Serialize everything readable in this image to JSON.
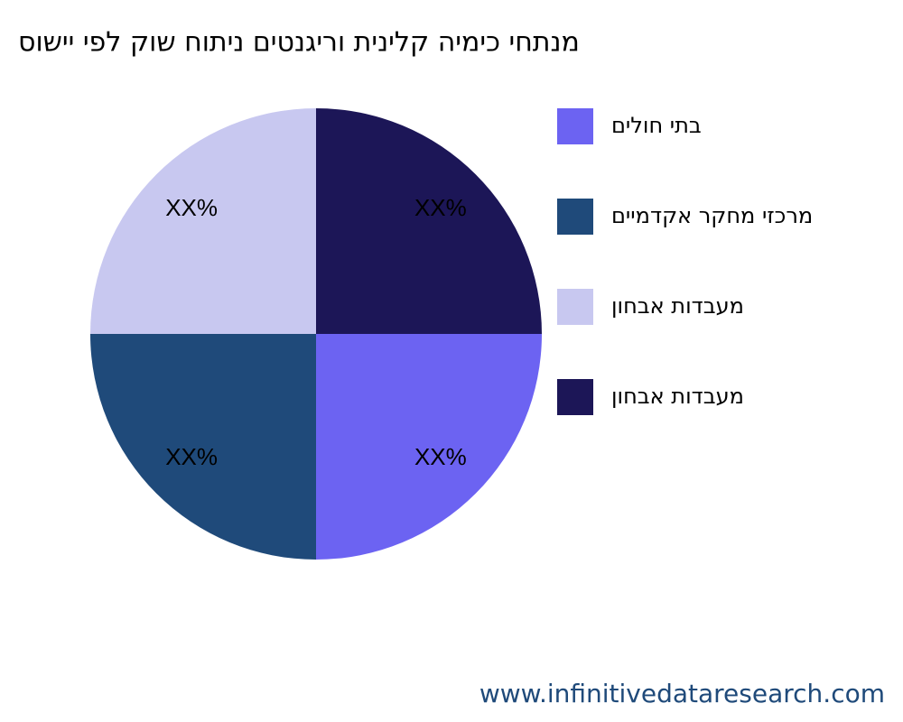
{
  "chart_data": {
    "type": "pie",
    "title": "סושיי יפל קוש חותינ םיטנגירו תינילק הימיכ יחתנמ",
    "categories": [
      "םילוח יתב",
      "םיימדקא רקחמ יזכרמ",
      "ןוחבא תודבעמ",
      "ןוחבא תודבעמ"
    ],
    "values": [
      25,
      25,
      25,
      25
    ],
    "value_labels": [
      "XX%",
      "XX%",
      "XX%",
      "XX%"
    ],
    "colors": [
      "#6c63f2",
      "#1f4a7a",
      "#c8c8f0",
      "#1c1657"
    ],
    "legend": "right"
  },
  "watermark": "www.infinitivedataresearch.com"
}
